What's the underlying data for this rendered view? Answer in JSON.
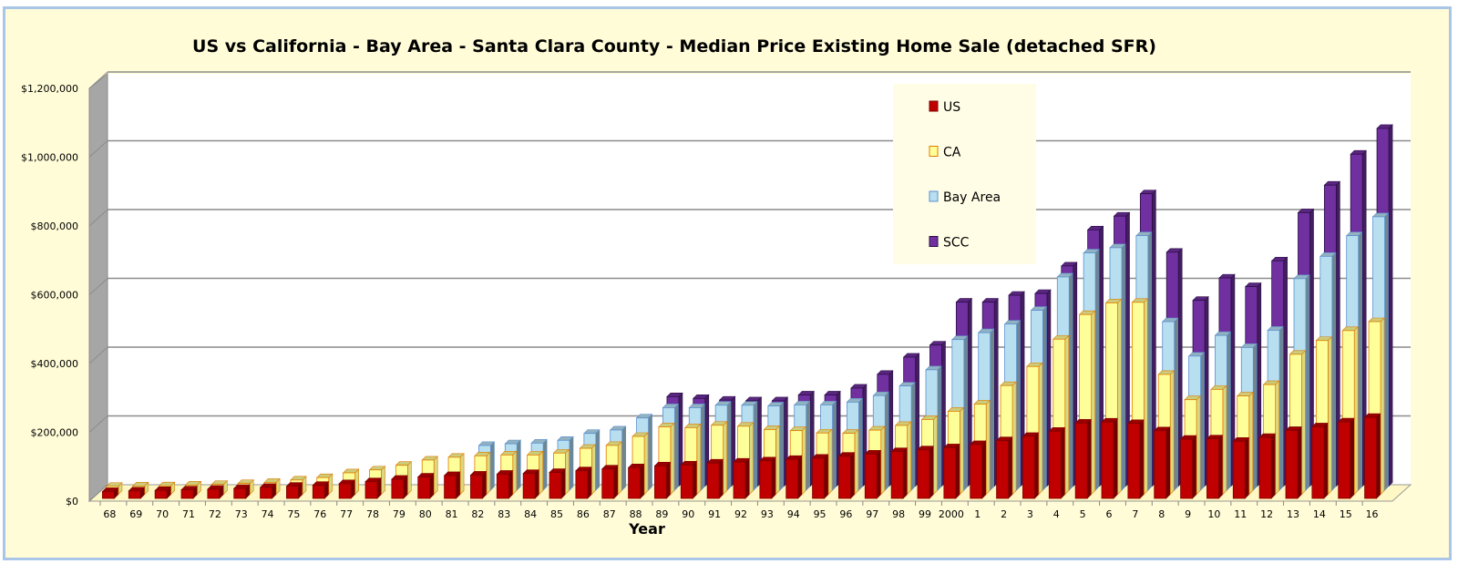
{
  "chart_data": {
    "type": "bar",
    "title": "US vs California  -  Bay Area  -  Santa Clara County - Median Price Existing Home Sale (detached SFR)",
    "xlabel": "Year",
    "ylabel": "",
    "ylim": [
      0,
      1200000
    ],
    "yticks": [
      "$0",
      "$200,000",
      "$400,000",
      "$600,000",
      "$800,000",
      "$1,000,000",
      "$1,200,000"
    ],
    "grid": true,
    "legend_position": "top-right",
    "categories": [
      "68",
      "69",
      "70",
      "71",
      "72",
      "73",
      "74",
      "75",
      "76",
      "77",
      "78",
      "79",
      "80",
      "81",
      "82",
      "83",
      "84",
      "85",
      "86",
      "87",
      "88",
      "89",
      "90",
      "91",
      "92",
      "93",
      "94",
      "95",
      "96",
      "97",
      "98",
      "99",
      "2000",
      "1",
      "2",
      "3",
      "4",
      "5",
      "6",
      "7",
      "8",
      "9",
      "10",
      "11",
      "12",
      "13",
      "14",
      "15",
      "16"
    ],
    "series": [
      {
        "name": "US",
        "color": "#c00000",
        "values": [
          20100,
          21800,
          23000,
          24800,
          26700,
          28900,
          32000,
          35300,
          38100,
          42900,
          48700,
          55700,
          62200,
          66400,
          67800,
          70300,
          72400,
          75500,
          80300,
          85600,
          89300,
          94600,
          97300,
          102700,
          105500,
          109100,
          113500,
          117000,
          122600,
          129000,
          136000,
          141200,
          147300,
          156600,
          167600,
          180200,
          195200,
          219000,
          221900,
          217900,
          196600,
          172100,
          173100,
          166200,
          177200,
          197400,
          208300,
          222400,
          235500
        ]
      },
      {
        "name": "CA",
        "color": "#ffff99",
        "values": [
          23210,
          24230,
          24640,
          26880,
          28810,
          31460,
          34610,
          41600,
          48560,
          62290,
          70890,
          84150,
          99550,
          107710,
          111800,
          114370,
          114260,
          119860,
          133640,
          142060,
          168200,
          196120,
          193770,
          200660,
          197900,
          188240,
          185010,
          178160,
          177270,
          186490,
          200100,
          217510,
          241350,
          262350,
          316130,
          371520,
          450990,
          522670,
          556430,
          558100,
          348500,
          275000,
          305000,
          286000,
          319000,
          407000,
          447000,
          476000,
          502000
        ]
      },
      {
        "name": "Bay Area",
        "color": "#b7dff0",
        "values": [
          null,
          null,
          null,
          null,
          null,
          null,
          null,
          null,
          null,
          null,
          null,
          null,
          null,
          null,
          130000,
          135000,
          137000,
          145000,
          165000,
          175000,
          210000,
          240000,
          240000,
          247000,
          247000,
          245000,
          248000,
          248000,
          256000,
          275000,
          303000,
          350000,
          438000,
          458000,
          483000,
          523000,
          620000,
          690000,
          705000,
          740000,
          490000,
          390000,
          450000,
          415000,
          465000,
          615000,
          680000,
          740000,
          795000
        ]
      },
      {
        "name": "SCC",
        "color": "#7030a0",
        "values": [
          null,
          null,
          null,
          null,
          null,
          null,
          null,
          null,
          null,
          null,
          null,
          null,
          null,
          null,
          null,
          null,
          null,
          null,
          null,
          null,
          null,
          260000,
          255000,
          250000,
          248000,
          248000,
          265000,
          265000,
          285000,
          325000,
          375000,
          410000,
          535000,
          535000,
          555000,
          560000,
          640000,
          745000,
          785000,
          850000,
          680000,
          540000,
          605000,
          580000,
          655000,
          795000,
          875000,
          965000,
          1040000
        ]
      }
    ]
  }
}
